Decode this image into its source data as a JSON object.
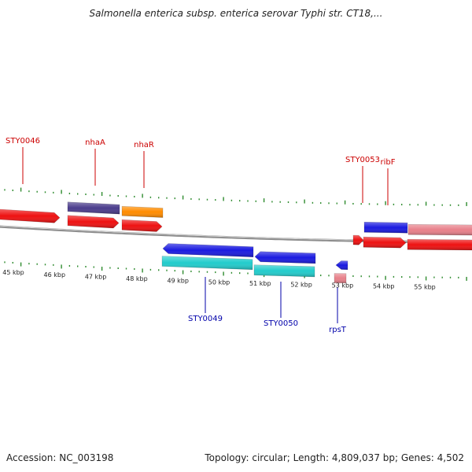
{
  "title": "Salmonella enterica subsp. enterica serovar Typhi str. CT18,...",
  "accession_text": "Accession: NC_003198",
  "summary_text": "Topology: circular; Length: 4,809,037 bp; Genes: 4,502",
  "colors": {
    "backbone": "#8c8c8c",
    "tick": "#2e8b2e",
    "forward_label": "#cc0000",
    "reverse_label": "#0000aa",
    "red": "#ee1111",
    "pink": "#e8808a",
    "blue": "#1a1ae0",
    "cyan": "#22cccc",
    "purple": "#4a3c8c",
    "orange": "#ff8c00"
  },
  "kbp_labels": [
    "45 kbp",
    "46 kbp",
    "47 kbp",
    "48 kbp",
    "49 kbp",
    "50 kbp",
    "51 kbp",
    "52 kbp",
    "53 kbp",
    "54 kbp",
    "55 kbp"
  ],
  "genes": [
    {
      "name": "STY0046",
      "strand": "forward"
    },
    {
      "name": "nhaA",
      "strand": "forward"
    },
    {
      "name": "nhaR",
      "strand": "forward"
    },
    {
      "name": "STY0049",
      "strand": "reverse"
    },
    {
      "name": "STY0050",
      "strand": "reverse"
    },
    {
      "name": "rpsT",
      "strand": "reverse"
    },
    {
      "name": "STY0053",
      "strand": "forward"
    },
    {
      "name": "ribF",
      "strand": "forward"
    }
  ]
}
